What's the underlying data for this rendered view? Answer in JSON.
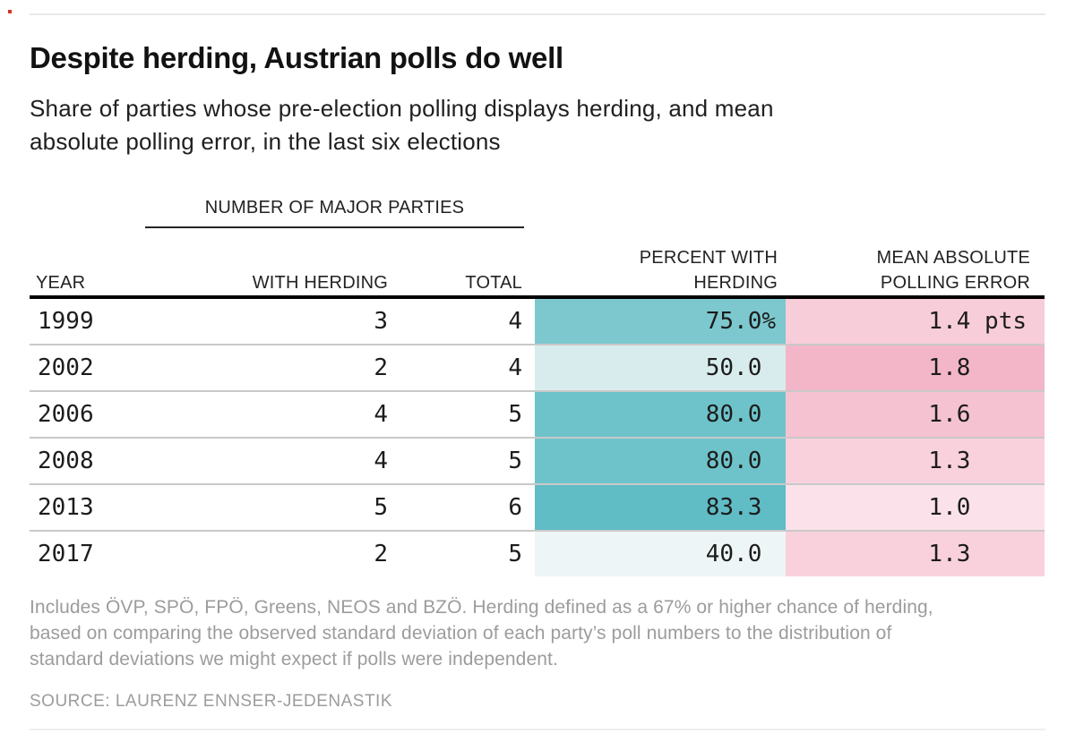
{
  "header": {
    "title": "Despite herding, Austrian polls do well",
    "subtitle_line1": "Share of parties whose pre-election polling displays herding, and mean",
    "subtitle_line2": "absolute polling error, in the last six elections"
  },
  "table": {
    "group_header": "NUMBER OF MAJOR PARTIES",
    "columns": {
      "year": "YEAR",
      "with_herding": "WITH HERDING",
      "total": "TOTAL",
      "percent_line1": "PERCENT WITH",
      "percent_line2": "HERDING",
      "error_line1": "MEAN ABSOLUTE",
      "error_line2": "POLLING ERROR"
    },
    "rows": [
      {
        "year": "1999",
        "with_herding": "3",
        "total": "4",
        "percent": "75.0",
        "percent_suffix": "%",
        "percent_color": "#7cc8ce",
        "error": "1.4",
        "error_suffix": " pts",
        "error_color": "#f8cdda"
      },
      {
        "year": "2002",
        "with_herding": "2",
        "total": "4",
        "percent": "50.0",
        "percent_suffix": "",
        "percent_color": "#d8eced",
        "error": "1.8",
        "error_suffix": "",
        "error_color": "#f3b6c9"
      },
      {
        "year": "2006",
        "with_herding": "4",
        "total": "5",
        "percent": "80.0",
        "percent_suffix": "",
        "percent_color": "#6ec3ca",
        "error": "1.6",
        "error_suffix": "",
        "error_color": "#f5c2d1"
      },
      {
        "year": "2008",
        "with_herding": "4",
        "total": "5",
        "percent": "80.0",
        "percent_suffix": "",
        "percent_color": "#6ec3ca",
        "error": "1.3",
        "error_suffix": "",
        "error_color": "#f8d1dd"
      },
      {
        "year": "2013",
        "with_herding": "5",
        "total": "6",
        "percent": "83.3",
        "percent_suffix": "",
        "percent_color": "#60bcc5",
        "error": "1.0",
        "error_suffix": "",
        "error_color": "#fbe2ea"
      },
      {
        "year": "2017",
        "with_herding": "2",
        "total": "5",
        "percent": "40.0",
        "percent_suffix": "",
        "percent_color": "#eef5f6",
        "error": "1.3",
        "error_suffix": "",
        "error_color": "#f8d1dd"
      }
    ]
  },
  "footnote_lines": [
    "Includes ÖVP, SPÖ, FPÖ, Greens, NEOS and BZÖ. Herding defined as a 67% or higher chance of herding,",
    "based on comparing the observed standard deviation of each party’s poll numbers to the distribution of",
    "standard deviations we might expect if polls were independent."
  ],
  "source": "SOURCE: LAURENZ ENNSER-JEDENASTIK",
  "chart_data": {
    "type": "table",
    "title": "Despite herding, Austrian polls do well",
    "subtitle": "Share of parties whose pre-election polling displays herding, and mean absolute polling error, in the last six elections",
    "columns": [
      "Year",
      "Number of major parties with herding",
      "Number of major parties total",
      "Percent with herding (%)",
      "Mean absolute polling error (pts)"
    ],
    "rows": [
      [
        1999,
        3,
        4,
        75.0,
        1.4
      ],
      [
        2002,
        2,
        4,
        50.0,
        1.8
      ],
      [
        2006,
        4,
        5,
        80.0,
        1.6
      ],
      [
        2008,
        4,
        5,
        80.0,
        1.3
      ],
      [
        2013,
        5,
        6,
        83.3,
        1.0
      ],
      [
        2017,
        2,
        5,
        40.0,
        1.3
      ]
    ],
    "shading": {
      "percent_with_herding": "teal cell intensity scales with value (darkest #60bcc5 at 83.3, lightest #eef5f6 at 40.0)",
      "mean_absolute_polling_error": "pink cell intensity scales with value (darkest #f3b6c9 at 1.8, lightest #fbe2ea at 1.0)"
    },
    "source": "Laurenz Ennser-Jedenastik"
  }
}
